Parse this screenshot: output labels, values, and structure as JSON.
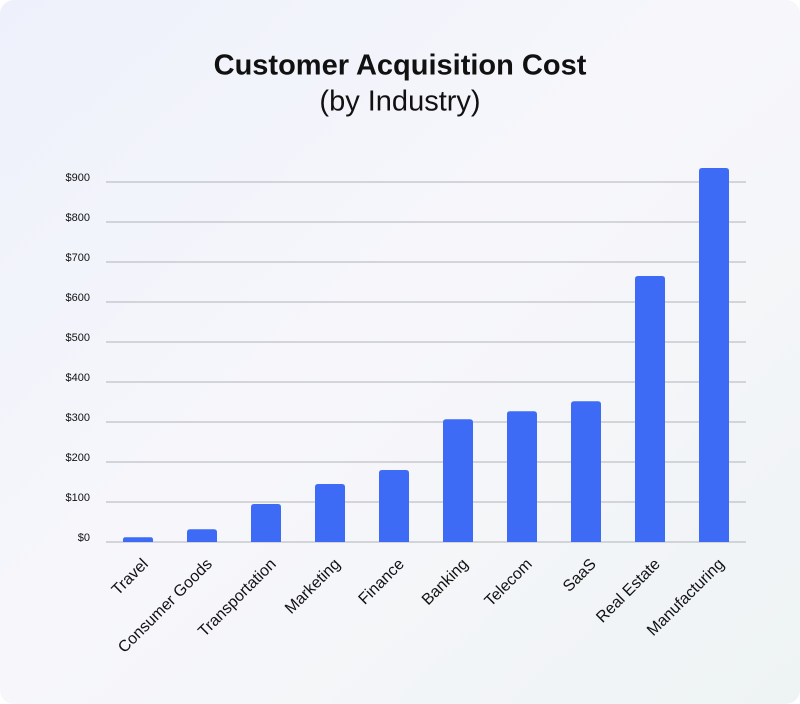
{
  "chart_data": {
    "type": "bar",
    "title": "Customer Acquisition Cost",
    "subtitle": "(by Industry)",
    "categories": [
      "Travel",
      "Consumer Goods",
      "Transportation",
      "Marketing",
      "Finance",
      "Banking",
      "Telecom",
      "SaaS",
      "Real Estate",
      "Manufacturing"
    ],
    "values": [
      12,
      32,
      95,
      145,
      180,
      307,
      327,
      352,
      665,
      935
    ],
    "color": "#3d6bf5",
    "ylim": [
      0,
      950
    ],
    "yticks": [
      {
        "value": 0,
        "label": "$0"
      },
      {
        "value": 100,
        "label": "$100"
      },
      {
        "value": 200,
        "label": "$200"
      },
      {
        "value": 300,
        "label": "$300"
      },
      {
        "value": 400,
        "label": "$400"
      },
      {
        "value": 500,
        "label": "$500"
      },
      {
        "value": 600,
        "label": "$600"
      },
      {
        "value": 700,
        "label": "$700"
      },
      {
        "value": 800,
        "label": "$800"
      },
      {
        "value": 900,
        "label": "$900"
      }
    ],
    "grid": true
  }
}
